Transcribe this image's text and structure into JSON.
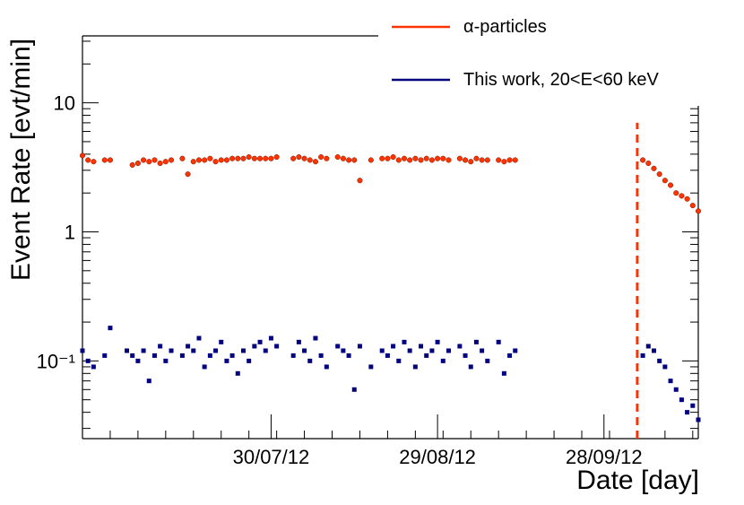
{
  "chart_data": {
    "type": "scatter",
    "xlabel": "Date [day]",
    "ylabel": "Event Rate [evt/min]",
    "y_scale": "log",
    "ylim": [
      0.025,
      33
    ],
    "xlim": [
      "2012-06-26",
      "2012-10-15"
    ],
    "x_tick_labels": [
      {
        "date": "2012-07-30",
        "label": "30/07/12"
      },
      {
        "date": "2012-08-29",
        "label": "29/08/12"
      },
      {
        "date": "2012-09-28",
        "label": "28/09/12"
      }
    ],
    "y_tick_labels": [
      {
        "value": 0.1,
        "label": "10⁻¹"
      },
      {
        "value": 1,
        "label": "1"
      },
      {
        "value": 10,
        "label": "10"
      }
    ],
    "legend_position": "top-right",
    "annotations": [
      {
        "type": "vertical-dashed-line",
        "date": "2012-10-04",
        "y_top": 7,
        "color": "#ff3300"
      }
    ],
    "series": [
      {
        "name": "α-particles",
        "color": "#ff3300",
        "marker_color": "#ff3300",
        "x": [
          "2012-06-26",
          "2012-06-27",
          "2012-06-28",
          "2012-06-30",
          "2012-07-01",
          "2012-07-05",
          "2012-07-06",
          "2012-07-07",
          "2012-07-08",
          "2012-07-09",
          "2012-07-10",
          "2012-07-11",
          "2012-07-12",
          "2012-07-14",
          "2012-07-15",
          "2012-07-16",
          "2012-07-17",
          "2012-07-18",
          "2012-07-19",
          "2012-07-20",
          "2012-07-21",
          "2012-07-22",
          "2012-07-23",
          "2012-07-24",
          "2012-07-25",
          "2012-07-26",
          "2012-07-27",
          "2012-07-28",
          "2012-07-29",
          "2012-07-30",
          "2012-07-31",
          "2012-08-03",
          "2012-08-04",
          "2012-08-05",
          "2012-08-06",
          "2012-08-07",
          "2012-08-08",
          "2012-08-09",
          "2012-08-11",
          "2012-08-12",
          "2012-08-13",
          "2012-08-14",
          "2012-08-15",
          "2012-08-17",
          "2012-08-19",
          "2012-08-20",
          "2012-08-21",
          "2012-08-22",
          "2012-08-23",
          "2012-08-24",
          "2012-08-25",
          "2012-08-26",
          "2012-08-27",
          "2012-08-28",
          "2012-08-29",
          "2012-08-30",
          "2012-08-31",
          "2012-09-02",
          "2012-09-03",
          "2012-09-04",
          "2012-09-05",
          "2012-09-06",
          "2012-09-07",
          "2012-09-09",
          "2012-09-10",
          "2012-09-11",
          "2012-09-12",
          "2012-10-05",
          "2012-10-06",
          "2012-10-07",
          "2012-10-08",
          "2012-10-09",
          "2012-10-10",
          "2012-10-11",
          "2012-10-12",
          "2012-10-13",
          "2012-10-14",
          "2012-10-15"
        ],
        "y": [
          3.9,
          3.6,
          3.5,
          3.6,
          3.6,
          3.3,
          3.4,
          3.6,
          3.5,
          3.6,
          3.4,
          3.5,
          3.6,
          3.7,
          2.8,
          3.5,
          3.6,
          3.6,
          3.7,
          3.5,
          3.6,
          3.6,
          3.7,
          3.7,
          3.7,
          3.8,
          3.7,
          3.7,
          3.7,
          3.7,
          3.8,
          3.7,
          3.8,
          3.7,
          3.6,
          3.5,
          3.8,
          3.7,
          3.8,
          3.7,
          3.6,
          3.6,
          2.5,
          3.6,
          3.7,
          3.7,
          3.8,
          3.6,
          3.7,
          3.6,
          3.7,
          3.6,
          3.7,
          3.6,
          3.7,
          3.7,
          3.6,
          3.7,
          3.6,
          3.5,
          3.7,
          3.6,
          3.6,
          3.6,
          3.5,
          3.6,
          3.6,
          3.6,
          3.4,
          3.1,
          2.8,
          2.5,
          2.3,
          2.0,
          1.9,
          1.8,
          1.6,
          1.45
        ]
      },
      {
        "name": "This work, 20<E<60 keV",
        "color": "#000080",
        "marker_color": "#000080",
        "x": [
          "2012-06-26",
          "2012-06-27",
          "2012-06-28",
          "2012-06-30",
          "2012-07-01",
          "2012-07-04",
          "2012-07-05",
          "2012-07-06",
          "2012-07-07",
          "2012-07-08",
          "2012-07-09",
          "2012-07-10",
          "2012-07-11",
          "2012-07-12",
          "2012-07-14",
          "2012-07-15",
          "2012-07-16",
          "2012-07-17",
          "2012-07-18",
          "2012-07-19",
          "2012-07-20",
          "2012-07-21",
          "2012-07-22",
          "2012-07-23",
          "2012-07-24",
          "2012-07-25",
          "2012-07-26",
          "2012-07-27",
          "2012-07-28",
          "2012-07-29",
          "2012-07-30",
          "2012-07-31",
          "2012-08-03",
          "2012-08-04",
          "2012-08-05",
          "2012-08-06",
          "2012-08-07",
          "2012-08-08",
          "2012-08-09",
          "2012-08-11",
          "2012-08-12",
          "2012-08-13",
          "2012-08-14",
          "2012-08-15",
          "2012-08-17",
          "2012-08-19",
          "2012-08-20",
          "2012-08-21",
          "2012-08-22",
          "2012-08-23",
          "2012-08-24",
          "2012-08-25",
          "2012-08-26",
          "2012-08-27",
          "2012-08-28",
          "2012-08-29",
          "2012-08-30",
          "2012-08-31",
          "2012-09-02",
          "2012-09-03",
          "2012-09-04",
          "2012-09-05",
          "2012-09-06",
          "2012-09-07",
          "2012-09-09",
          "2012-09-10",
          "2012-09-11",
          "2012-09-12",
          "2012-10-05",
          "2012-10-06",
          "2012-10-07",
          "2012-10-08",
          "2012-10-09",
          "2012-10-10",
          "2012-10-11",
          "2012-10-12",
          "2012-10-13",
          "2012-10-14",
          "2012-10-15"
        ],
        "y": [
          0.12,
          0.1,
          0.09,
          0.11,
          0.18,
          0.12,
          0.11,
          0.1,
          0.12,
          0.07,
          0.11,
          0.13,
          0.1,
          0.12,
          0.11,
          0.13,
          0.12,
          0.15,
          0.09,
          0.11,
          0.12,
          0.14,
          0.1,
          0.11,
          0.08,
          0.12,
          0.1,
          0.13,
          0.14,
          0.12,
          0.15,
          0.13,
          0.11,
          0.14,
          0.12,
          0.1,
          0.15,
          0.11,
          0.09,
          0.13,
          0.12,
          0.11,
          0.06,
          0.13,
          0.09,
          0.12,
          0.11,
          0.13,
          0.1,
          0.14,
          0.12,
          0.09,
          0.13,
          0.11,
          0.12,
          0.14,
          0.1,
          0.12,
          0.13,
          0.11,
          0.09,
          0.14,
          0.12,
          0.1,
          0.14,
          0.08,
          0.11,
          0.12,
          0.11,
          0.13,
          0.12,
          0.1,
          0.09,
          0.07,
          0.06,
          0.05,
          0.04,
          0.045,
          0.035
        ]
      }
    ]
  }
}
